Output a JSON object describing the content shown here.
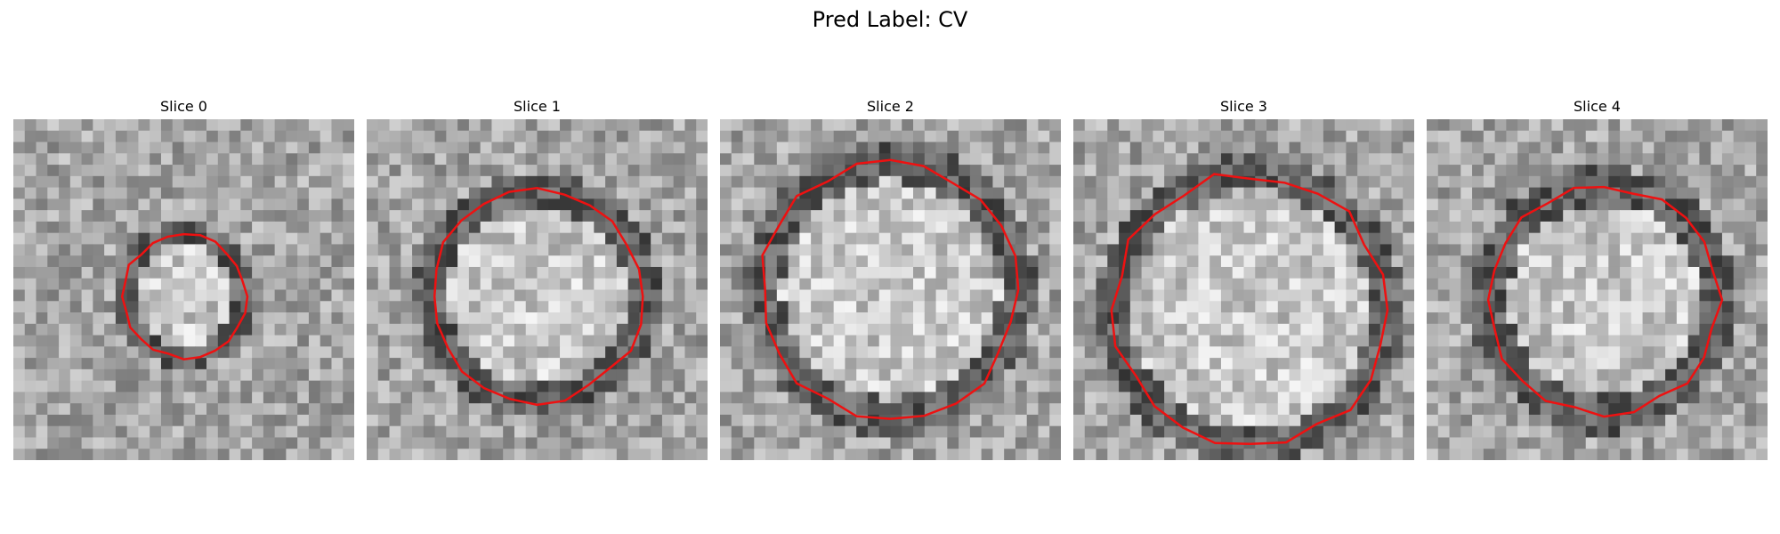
{
  "suptitle": "Pred Label: CV",
  "contour_color": "#ee1111",
  "panels": [
    {
      "title": "Slice 0",
      "inner_radius": 0.3,
      "ring_radius": 0.42,
      "center": [
        0.5,
        0.52
      ]
    },
    {
      "title": "Slice 1",
      "inner_radius": 0.52,
      "ring_radius": 0.72,
      "center": [
        0.5,
        0.52
      ]
    },
    {
      "title": "Slice 2",
      "inner_radius": 0.64,
      "ring_radius": 0.86,
      "center": [
        0.5,
        0.5
      ]
    },
    {
      "title": "Slice 3",
      "inner_radius": 0.7,
      "ring_radius": 0.9,
      "center": [
        0.52,
        0.56
      ]
    },
    {
      "title": "Slice 4",
      "inner_radius": 0.56,
      "ring_radius": 0.78,
      "center": [
        0.52,
        0.53
      ]
    }
  ]
}
